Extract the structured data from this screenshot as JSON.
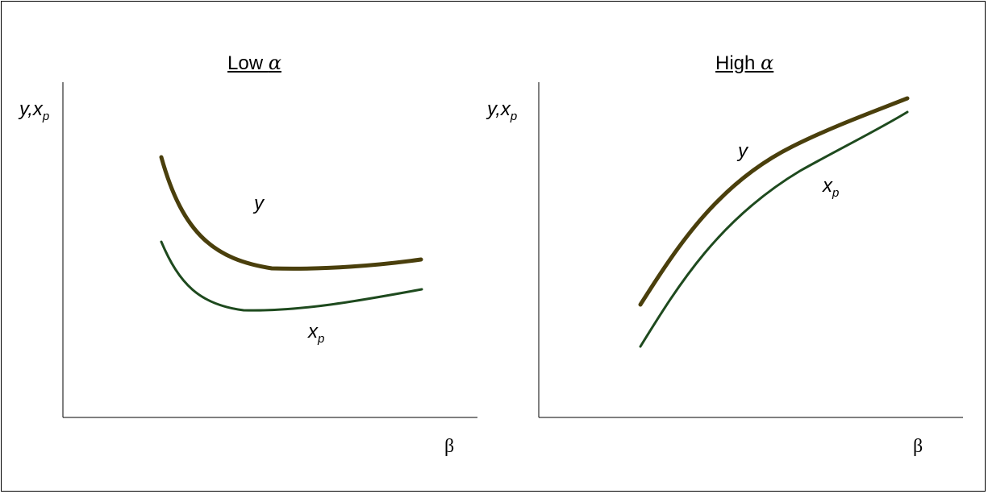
{
  "panels": [
    {
      "title_prefix": "Low ",
      "title_symbol": "α",
      "y_axis_label": "y,x",
      "y_axis_subscript": "p",
      "x_axis_label": "β",
      "curves": [
        {
          "label": "y",
          "subscript": "",
          "color": "#4a3f0c"
        },
        {
          "label": "x",
          "subscript": "p",
          "color": "#1e4a1e"
        }
      ]
    },
    {
      "title_prefix": "High ",
      "title_symbol": "α",
      "y_axis_label": "y,x",
      "y_axis_subscript": "p",
      "x_axis_label": "β",
      "curves": [
        {
          "label": "y",
          "subscript": "",
          "color": "#4a3f0c"
        },
        {
          "label": "x",
          "subscript": "p",
          "color": "#1e4a1e"
        }
      ]
    }
  ]
}
